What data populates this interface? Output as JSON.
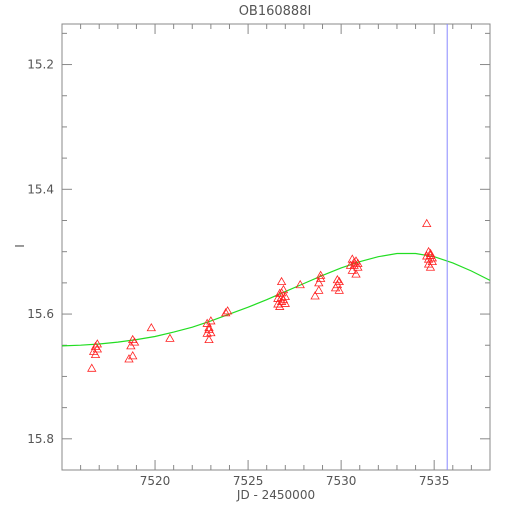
{
  "chart_data": {
    "type": "scatter",
    "title": "OB160888I",
    "xlabel": "JD - 2450000",
    "ylabel": "I",
    "xlim": [
      7515,
      7538
    ],
    "ylim": [
      15.135,
      15.85
    ],
    "y_inverted": true,
    "grid": false,
    "x_ticks": [
      7520,
      7525,
      7530,
      7535
    ],
    "y_ticks": [
      15.2,
      15.4,
      15.6,
      15.8
    ],
    "x_tick_labels": [
      "7520",
      "7525",
      "7530",
      "7535"
    ],
    "y_tick_labels": [
      "15.2",
      "15.4",
      "15.6",
      "15.8"
    ],
    "vertical_line_x": 7535.7,
    "colors": {
      "points": "#ff2020",
      "model": "#22dd22",
      "vline": "#8888ff",
      "axes": "#888888"
    },
    "series": [
      {
        "marker": "triangle",
        "points": [
          [
            7516.6,
            15.687
          ],
          [
            7516.7,
            15.66
          ],
          [
            7516.8,
            15.652
          ],
          [
            7516.8,
            15.665
          ],
          [
            7516.9,
            15.656
          ],
          [
            7516.9,
            15.648
          ],
          [
            7518.6,
            15.672
          ],
          [
            7518.7,
            15.651
          ],
          [
            7518.8,
            15.667
          ],
          [
            7518.8,
            15.641
          ],
          [
            7518.9,
            15.645
          ],
          [
            7519.8,
            15.622
          ],
          [
            7520.8,
            15.639
          ],
          [
            7522.8,
            15.615
          ],
          [
            7522.8,
            15.631
          ],
          [
            7522.9,
            15.641
          ],
          [
            7522.9,
            15.625
          ],
          [
            7522.9,
            15.622
          ],
          [
            7523.0,
            15.63
          ],
          [
            7523.0,
            15.611
          ],
          [
            7523.8,
            15.598
          ],
          [
            7523.9,
            15.595
          ],
          [
            7526.6,
            15.584
          ],
          [
            7526.6,
            15.575
          ],
          [
            7526.7,
            15.567
          ],
          [
            7526.7,
            15.588
          ],
          [
            7526.8,
            15.58
          ],
          [
            7526.8,
            15.573
          ],
          [
            7526.8,
            15.566
          ],
          [
            7526.9,
            15.561
          ],
          [
            7526.9,
            15.577
          ],
          [
            7526.8,
            15.548
          ],
          [
            7527.0,
            15.583
          ],
          [
            7527.0,
            15.572
          ],
          [
            7527.8,
            15.553
          ],
          [
            7528.6,
            15.571
          ],
          [
            7528.8,
            15.55
          ],
          [
            7528.8,
            15.562
          ],
          [
            7528.9,
            15.543
          ],
          [
            7528.9,
            15.538
          ],
          [
            7529.7,
            15.558
          ],
          [
            7529.8,
            15.545
          ],
          [
            7529.8,
            15.553
          ],
          [
            7529.9,
            15.562
          ],
          [
            7529.9,
            15.548
          ],
          [
            7530.5,
            15.522
          ],
          [
            7530.6,
            15.512
          ],
          [
            7530.6,
            15.53
          ],
          [
            7530.7,
            15.517
          ],
          [
            7530.7,
            15.522
          ],
          [
            7530.8,
            15.536
          ],
          [
            7530.8,
            15.515
          ],
          [
            7530.9,
            15.525
          ],
          [
            7530.9,
            15.519
          ],
          [
            7534.6,
            15.455
          ],
          [
            7534.6,
            15.507
          ],
          [
            7534.7,
            15.52
          ],
          [
            7534.7,
            15.512
          ],
          [
            7534.7,
            15.5
          ],
          [
            7534.8,
            15.525
          ],
          [
            7534.8,
            15.506
          ],
          [
            7534.9,
            15.51
          ],
          [
            7534.9,
            15.516
          ],
          [
            7534.8,
            15.503
          ]
        ]
      }
    ],
    "model_curve": {
      "x": [
        7515.0,
        7516.0,
        7517.0,
        7518.0,
        7519.0,
        7520.0,
        7521.0,
        7522.0,
        7523.0,
        7524.0,
        7525.0,
        7526.0,
        7527.0,
        7528.0,
        7529.0,
        7530.0,
        7531.0,
        7532.0,
        7533.0,
        7534.0,
        7535.0,
        7536.0,
        7537.0,
        7538.0
      ],
      "y": [
        15.651,
        15.65,
        15.648,
        15.645,
        15.641,
        15.636,
        15.629,
        15.621,
        15.611,
        15.6,
        15.589,
        15.577,
        15.564,
        15.551,
        15.538,
        15.526,
        15.516,
        15.508,
        15.503,
        15.503,
        15.508,
        15.518,
        15.531,
        15.546
      ]
    }
  }
}
